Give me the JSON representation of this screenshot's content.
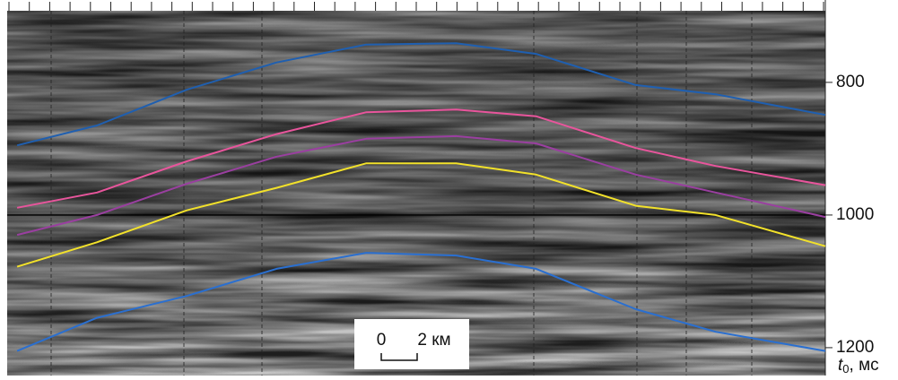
{
  "chart_data": {
    "type": "line",
    "x": [
      0,
      4,
      8.5,
      13,
      17.5,
      22,
      26,
      31,
      35,
      40.5
    ],
    "xlim": [
      -0.5,
      40.5
    ],
    "ylim": [
      692,
      1242
    ],
    "y_inverted": true,
    "yticks": [
      800,
      1000,
      1200
    ],
    "hline": 1000,
    "y_label": {
      "symbol": "t",
      "subscript": "0",
      "unit": ", мс"
    },
    "scale_bar": {
      "start": "0",
      "end": "2 км"
    },
    "series": [
      {
        "color": "#1f5fb0",
        "values": [
          895,
          865,
          811,
          770,
          743,
          741,
          757,
          804,
          818,
          849
        ]
      },
      {
        "color": "#e8559c",
        "values": [
          989,
          966,
          919,
          878,
          845,
          841,
          851,
          899,
          926,
          955
        ]
      },
      {
        "color": "#9a3fa0",
        "values": [
          1030,
          1000,
          953,
          912,
          885,
          881,
          892,
          939,
          966,
          1003
        ]
      },
      {
        "color": "#f2e12a",
        "values": [
          1078,
          1041,
          993,
          959,
          922,
          922,
          939,
          986,
          1000,
          1047
        ]
      },
      {
        "color": "#2a6fd0",
        "values": [
          1205,
          1155,
          1122,
          1081,
          1057,
          1061,
          1081,
          1142,
          1176,
          1205
        ]
      }
    ]
  }
}
